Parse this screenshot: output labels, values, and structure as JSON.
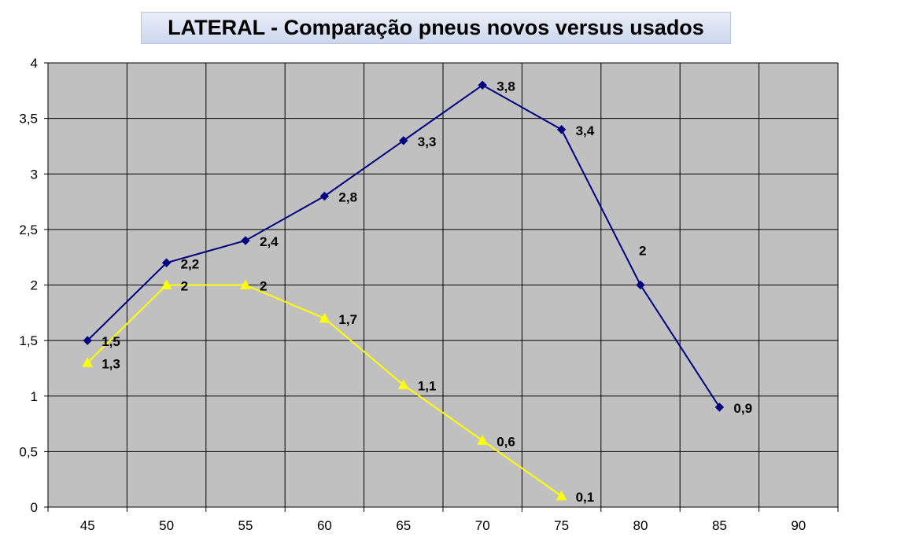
{
  "chart_data": {
    "type": "line",
    "title": "LATERAL  - Comparação pneus novos versus usados",
    "xlabel": "",
    "ylabel": "",
    "categories": [
      "45",
      "50",
      "55",
      "60",
      "65",
      "70",
      "75",
      "80",
      "85",
      "90"
    ],
    "x_tick_labels": [
      "45",
      "50",
      "55",
      "60",
      "65",
      "70",
      "75",
      "80",
      "85",
      "90"
    ],
    "y_tick_labels": [
      "0",
      "0,5",
      "1",
      "1,5",
      "2",
      "2,5",
      "3",
      "3,5",
      "4"
    ],
    "ylim": [
      0,
      4
    ],
    "grid": true,
    "legend": "none",
    "plot_background": "#c0c0c0",
    "series": [
      {
        "color": "#000080",
        "marker": "diamond",
        "values": [
          1.5,
          2.2,
          2.4,
          2.8,
          3.3,
          3.8,
          3.4,
          2.0,
          0.9,
          null
        ],
        "labels": [
          "1,5",
          "2,2",
          "2,4",
          "2,8",
          "3,3",
          "3,8",
          "3,4",
          "2",
          "0,9",
          ""
        ]
      },
      {
        "color": "#ffff00",
        "marker": "triangle",
        "values": [
          1.3,
          2.0,
          2.0,
          1.7,
          1.1,
          0.6,
          0.1,
          null,
          null,
          null
        ],
        "labels": [
          "1,3",
          "2",
          "2",
          "1,7",
          "1,1",
          "0,6",
          "0,1",
          "",
          "",
          ""
        ]
      }
    ]
  }
}
